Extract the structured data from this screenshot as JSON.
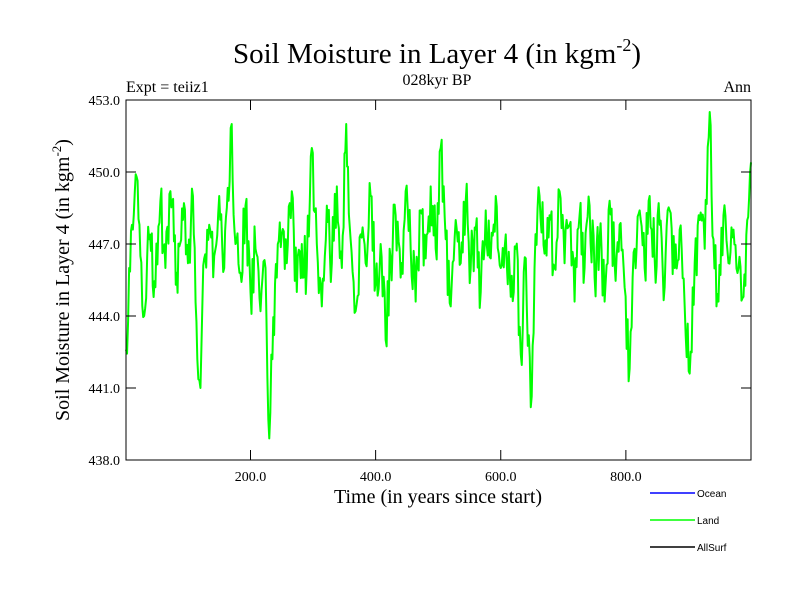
{
  "header": {
    "title_main": "Soil Moisture in Layer 4 (in kgm",
    "title_sup": "-2",
    "title_close": ")",
    "subtitle": "028kyr BP",
    "left_label": "Expt = teiiz1",
    "right_label": "Ann"
  },
  "chart_data": {
    "type": "line",
    "xlabel": "Time (in years since start)",
    "ylabel_main": "Soil Moisture in Layer 4 (in kgm",
    "ylabel_sup": "-2",
    "ylabel_close": ")",
    "xlim": [
      1,
      1000
    ],
    "ylim": [
      438.0,
      453.0
    ],
    "x_ticks": [
      200,
      400,
      600,
      800
    ],
    "x_tick_labels": [
      "200.0",
      "400.0",
      "600.0",
      "800.0"
    ],
    "y_ticks": [
      438,
      441,
      444,
      447,
      450,
      453
    ],
    "y_tick_labels": [
      "438.0",
      "441.0",
      "444.0",
      "447.0",
      "450.0",
      "453.0"
    ],
    "legend_position": "bottom-right",
    "series": [
      {
        "name": "Ocean",
        "color": "#0000ff",
        "values": []
      },
      {
        "name": "Land",
        "color": "#00ff00",
        "keypoints": [
          [
            1,
            442.6
          ],
          [
            6,
            446.0
          ],
          [
            12,
            447.6
          ],
          [
            18,
            449.8
          ],
          [
            24,
            446.5
          ],
          [
            30,
            444.0
          ],
          [
            38,
            447.2
          ],
          [
            48,
            445.2
          ],
          [
            56,
            448.8
          ],
          [
            64,
            446.0
          ],
          [
            72,
            449.2
          ],
          [
            82,
            445.8
          ],
          [
            92,
            448.0
          ],
          [
            100,
            446.2
          ],
          [
            108,
            449.0
          ],
          [
            115,
            442.2
          ],
          [
            120,
            441.0
          ],
          [
            126,
            446.4
          ],
          [
            134,
            447.8
          ],
          [
            142,
            446.5
          ],
          [
            150,
            449.0
          ],
          [
            158,
            446.0
          ],
          [
            165,
            448.8
          ],
          [
            170,
            452.0
          ],
          [
            176,
            447.0
          ],
          [
            184,
            445.8
          ],
          [
            192,
            448.6
          ],
          [
            200,
            445.0
          ],
          [
            208,
            446.8
          ],
          [
            216,
            444.2
          ],
          [
            224,
            446.0
          ],
          [
            230,
            438.9
          ],
          [
            235,
            442.2
          ],
          [
            242,
            445.6
          ],
          [
            250,
            447.4
          ],
          [
            258,
            446.2
          ],
          [
            266,
            449.2
          ],
          [
            274,
            445.0
          ],
          [
            282,
            447.0
          ],
          [
            290,
            446.0
          ],
          [
            298,
            451.0
          ],
          [
            306,
            447.0
          ],
          [
            314,
            444.4
          ],
          [
            322,
            448.6
          ],
          [
            330,
            446.2
          ],
          [
            338,
            449.4
          ],
          [
            346,
            446.0
          ],
          [
            353,
            452.0
          ],
          [
            360,
            447.2
          ],
          [
            368,
            444.2
          ],
          [
            376,
            447.4
          ],
          [
            384,
            446.2
          ],
          [
            392,
            449.0
          ],
          [
            400,
            445.4
          ],
          [
            408,
            447.0
          ],
          [
            416,
            443.0
          ],
          [
            424,
            446.4
          ],
          [
            432,
            448.2
          ],
          [
            440,
            445.6
          ],
          [
            448,
            449.2
          ],
          [
            456,
            446.8
          ],
          [
            464,
            444.6
          ],
          [
            472,
            448.4
          ],
          [
            480,
            446.4
          ],
          [
            488,
            449.4
          ],
          [
            496,
            446.8
          ],
          [
            504,
            451.0
          ],
          [
            512,
            447.2
          ],
          [
            520,
            444.4
          ],
          [
            528,
            448.0
          ],
          [
            536,
            446.2
          ],
          [
            544,
            448.8
          ],
          [
            552,
            446.0
          ],
          [
            560,
            447.6
          ],
          [
            568,
            445.0
          ],
          [
            576,
            448.4
          ],
          [
            584,
            446.4
          ],
          [
            592,
            449.0
          ],
          [
            600,
            446.0
          ],
          [
            608,
            447.4
          ],
          [
            616,
            444.8
          ],
          [
            624,
            446.8
          ],
          [
            632,
            442.4
          ],
          [
            640,
            446.4
          ],
          [
            648,
            440.2
          ],
          [
            654,
            446.0
          ],
          [
            662,
            449.0
          ],
          [
            670,
            446.6
          ],
          [
            678,
            448.2
          ],
          [
            686,
            446.0
          ],
          [
            694,
            449.2
          ],
          [
            702,
            446.2
          ],
          [
            710,
            447.8
          ],
          [
            718,
            444.6
          ],
          [
            726,
            448.2
          ],
          [
            734,
            446.0
          ],
          [
            742,
            448.6
          ],
          [
            750,
            445.6
          ],
          [
            758,
            447.2
          ],
          [
            766,
            444.6
          ],
          [
            774,
            448.8
          ],
          [
            782,
            446.2
          ],
          [
            790,
            447.8
          ],
          [
            798,
            445.2
          ],
          [
            806,
            441.8
          ],
          [
            814,
            446.8
          ],
          [
            822,
            448.4
          ],
          [
            830,
            446.0
          ],
          [
            838,
            449.0
          ],
          [
            846,
            446.4
          ],
          [
            854,
            447.8
          ],
          [
            862,
            445.2
          ],
          [
            870,
            448.4
          ],
          [
            878,
            446.0
          ],
          [
            886,
            447.6
          ],
          [
            894,
            444.4
          ],
          [
            902,
            441.6
          ],
          [
            910,
            446.2
          ],
          [
            918,
            448.0
          ],
          [
            926,
            446.8
          ],
          [
            934,
            452.5
          ],
          [
            940,
            447.2
          ],
          [
            948,
            444.6
          ],
          [
            956,
            448.2
          ],
          [
            964,
            446.2
          ],
          [
            972,
            447.6
          ],
          [
            980,
            446.0
          ],
          [
            988,
            444.8
          ],
          [
            994,
            448.0
          ],
          [
            1000,
            450.4
          ]
        ]
      },
      {
        "name": "AllSurf",
        "color": "#000000",
        "values": []
      }
    ]
  }
}
